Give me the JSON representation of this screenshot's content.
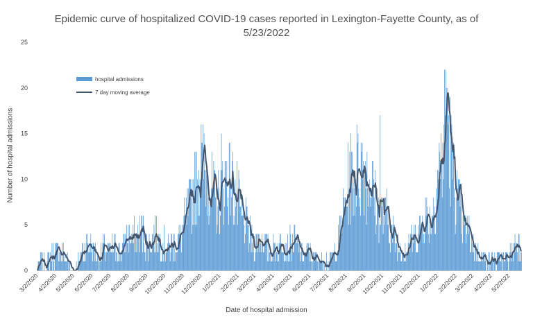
{
  "chart_data": {
    "type": "bar",
    "title_line1": "Epidemic curve of hospitalized COVID-19 cases reported in Lexington-Fayette County, as of",
    "title_line2": "5/23/2022",
    "xlabel": "Date of hospital admission",
    "ylabel": "Number of hospital admissions",
    "ylim": [
      0,
      25
    ],
    "yticks": [
      0,
      5,
      10,
      15,
      20,
      25
    ],
    "grid": false,
    "legend_position": "top-left",
    "x_range": [
      "3/2/2020",
      "5/23/2022"
    ],
    "x_tick_labels": [
      "3/2/2020",
      "4/2/2020",
      "5/2/2020",
      "6/2/2020",
      "7/2/2020",
      "8/2/2020",
      "9/2/2020",
      "10/2/2020",
      "11/2/2020",
      "12/2/2020",
      "1/2/2021",
      "2/2/2021",
      "3/2/2021",
      "4/2/2021",
      "5/2/2021",
      "6/2/2021",
      "7/2/2021",
      "8/2/2021",
      "9/2/2021",
      "10/2/2021",
      "11/2/2021",
      "12/2/2021",
      "1/2/2022",
      "2/2/2022",
      "3/2/2022",
      "4/2/2022",
      "5/2/2022"
    ],
    "series": [
      {
        "name": "hospital admissions",
        "type": "bar",
        "color": "#5b9bd5",
        "frequency": "daily",
        "approx_weekly_mean_by_date": [
          [
            "3/2/2020",
            0.3
          ],
          [
            "3/9/2020",
            1.0
          ],
          [
            "3/16/2020",
            0.5
          ],
          [
            "3/23/2020",
            1.2
          ],
          [
            "3/30/2020",
            1.8
          ],
          [
            "4/6/2020",
            2.0
          ],
          [
            "4/13/2020",
            2.0
          ],
          [
            "4/20/2020",
            1.2
          ],
          [
            "4/27/2020",
            0.4
          ],
          [
            "5/4/2020",
            0.3
          ],
          [
            "5/11/2020",
            1.0
          ],
          [
            "5/18/2020",
            2.3
          ],
          [
            "5/25/2020",
            2.8
          ],
          [
            "6/1/2020",
            2.5
          ],
          [
            "6/8/2020",
            1.8
          ],
          [
            "6/15/2020",
            1.6
          ],
          [
            "6/22/2020",
            2.5
          ],
          [
            "6/29/2020",
            1.8
          ],
          [
            "7/6/2020",
            2.3
          ],
          [
            "7/13/2020",
            2.6
          ],
          [
            "7/20/2020",
            2.2
          ],
          [
            "7/27/2020",
            3.0
          ],
          [
            "8/3/2020",
            3.8
          ],
          [
            "8/10/2020",
            3.5
          ],
          [
            "8/17/2020",
            3.8
          ],
          [
            "8/24/2020",
            4.5
          ],
          [
            "8/31/2020",
            3.0
          ],
          [
            "9/7/2020",
            3.0
          ],
          [
            "9/14/2020",
            4.0
          ],
          [
            "9/21/2020",
            3.5
          ],
          [
            "9/28/2020",
            3.0
          ],
          [
            "10/5/2020",
            2.5
          ],
          [
            "10/12/2020",
            2.5
          ],
          [
            "10/19/2020",
            3.0
          ],
          [
            "10/26/2020",
            3.5
          ],
          [
            "11/2/2020",
            4.5
          ],
          [
            "11/9/2020",
            6.0
          ],
          [
            "11/16/2020",
            8.0
          ],
          [
            "11/23/2020",
            9.5
          ],
          [
            "11/30/2020",
            11.5
          ],
          [
            "12/7/2020",
            11.0
          ],
          [
            "12/14/2020",
            10.0
          ],
          [
            "12/21/2020",
            8.5
          ],
          [
            "12/28/2020",
            7.0
          ],
          [
            "1/4/2021",
            8.5
          ],
          [
            "1/11/2021",
            10.5
          ],
          [
            "1/18/2021",
            10.0
          ],
          [
            "1/25/2021",
            9.0
          ],
          [
            "2/1/2021",
            7.5
          ],
          [
            "2/8/2021",
            5.5
          ],
          [
            "2/15/2021",
            5.0
          ],
          [
            "2/22/2021",
            3.5
          ],
          [
            "3/1/2021",
            2.5
          ],
          [
            "3/8/2021",
            3.5
          ],
          [
            "3/15/2021",
            3.5
          ],
          [
            "3/22/2021",
            2.5
          ],
          [
            "3/29/2021",
            2.0
          ],
          [
            "4/5/2021",
            2.5
          ],
          [
            "4/12/2021",
            3.0
          ],
          [
            "4/19/2021",
            3.2
          ],
          [
            "4/26/2021",
            2.5
          ],
          [
            "5/3/2021",
            3.0
          ],
          [
            "5/10/2021",
            3.0
          ],
          [
            "5/17/2021",
            2.0
          ],
          [
            "5/24/2021",
            1.8
          ],
          [
            "5/31/2021",
            2.0
          ],
          [
            "6/7/2021",
            1.3
          ],
          [
            "6/14/2021",
            1.2
          ],
          [
            "6/21/2021",
            1.0
          ],
          [
            "6/28/2021",
            1.0
          ],
          [
            "7/5/2021",
            1.2
          ],
          [
            "7/12/2021",
            1.5
          ],
          [
            "7/19/2021",
            3.0
          ],
          [
            "7/26/2021",
            5.5
          ],
          [
            "8/2/2021",
            8.0
          ],
          [
            "8/9/2021",
            10.5
          ],
          [
            "8/16/2021",
            10.0
          ],
          [
            "8/23/2021",
            11.0
          ],
          [
            "8/30/2021",
            12.0
          ],
          [
            "9/6/2021",
            10.5
          ],
          [
            "9/13/2021",
            10.0
          ],
          [
            "9/20/2021",
            7.5
          ],
          [
            "9/27/2021",
            6.5
          ],
          [
            "10/4/2021",
            5.5
          ],
          [
            "10/11/2021",
            6.0
          ],
          [
            "10/18/2021",
            4.0
          ],
          [
            "10/25/2021",
            3.0
          ],
          [
            "11/1/2021",
            2.3
          ],
          [
            "11/8/2021",
            2.5
          ],
          [
            "11/15/2021",
            3.0
          ],
          [
            "11/22/2021",
            3.5
          ],
          [
            "11/29/2021",
            4.0
          ],
          [
            "12/6/2021",
            4.5
          ],
          [
            "12/13/2021",
            6.0
          ],
          [
            "12/20/2021",
            5.5
          ],
          [
            "12/27/2021",
            7.0
          ],
          [
            "1/3/2022",
            11.0
          ],
          [
            "1/10/2022",
            12.0
          ],
          [
            "1/17/2022",
            18.0
          ],
          [
            "1/24/2022",
            13.0
          ],
          [
            "1/31/2022",
            9.0
          ],
          [
            "2/7/2022",
            7.0
          ],
          [
            "2/14/2022",
            4.5
          ],
          [
            "2/21/2022",
            4.5
          ],
          [
            "2/28/2022",
            3.5
          ],
          [
            "3/7/2022",
            2.0
          ],
          [
            "3/14/2022",
            2.0
          ],
          [
            "3/21/2022",
            1.5
          ],
          [
            "3/28/2022",
            1.2
          ],
          [
            "4/4/2022",
            1.0
          ],
          [
            "4/11/2022",
            1.0
          ],
          [
            "4/18/2022",
            1.5
          ],
          [
            "4/25/2022",
            1.0
          ],
          [
            "5/2/2022",
            1.5
          ],
          [
            "5/9/2022",
            2.5
          ],
          [
            "5/16/2022",
            3.5
          ],
          [
            "5/23/2022",
            2.8
          ]
        ],
        "notable_peaks": [
          [
            "12/2/2020",
            16
          ],
          [
            "1/5/2021",
            15
          ],
          [
            "8/20/2021",
            16
          ],
          [
            "9/28/2021",
            17
          ],
          [
            "1/16/2022",
            22
          ],
          [
            "1/19/2022",
            20
          ]
        ]
      },
      {
        "name": "7 day moving average",
        "type": "line",
        "color": "#44546a"
      }
    ]
  }
}
